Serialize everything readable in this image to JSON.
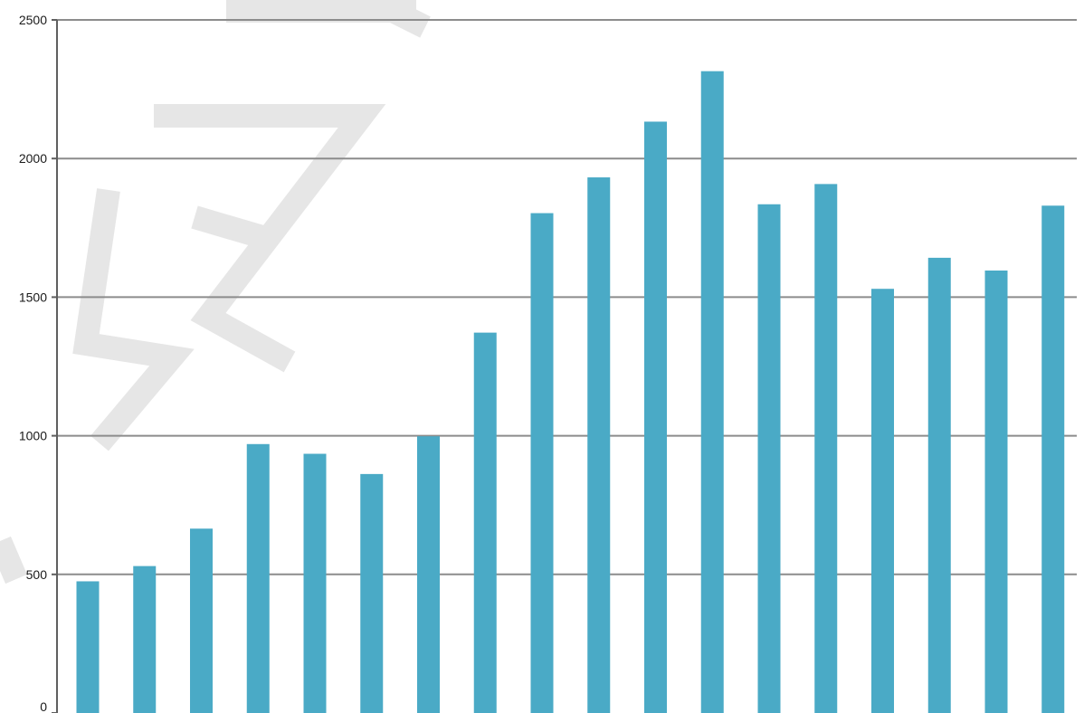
{
  "watermark": {
    "text": "SLAN"
  },
  "colors": {
    "bar": "#4aaac6",
    "grid": "#8c8c8c",
    "axis": "#5f5f5f",
    "watermark": "#e6e6e6"
  },
  "chart_data": {
    "type": "bar",
    "title": "",
    "xlabel": "",
    "ylabel": "",
    "ylim": [
      0,
      2500
    ],
    "yticks": [
      0,
      500,
      1000,
      1500,
      2000,
      2500
    ],
    "grid": true,
    "legend": "none",
    "series": [
      {
        "values": [
          475,
          530,
          665,
          970,
          935,
          862,
          998,
          1372,
          1803,
          1932,
          2133,
          2315,
          1835,
          1908,
          1530,
          1642,
          1596,
          1830
        ]
      }
    ]
  }
}
